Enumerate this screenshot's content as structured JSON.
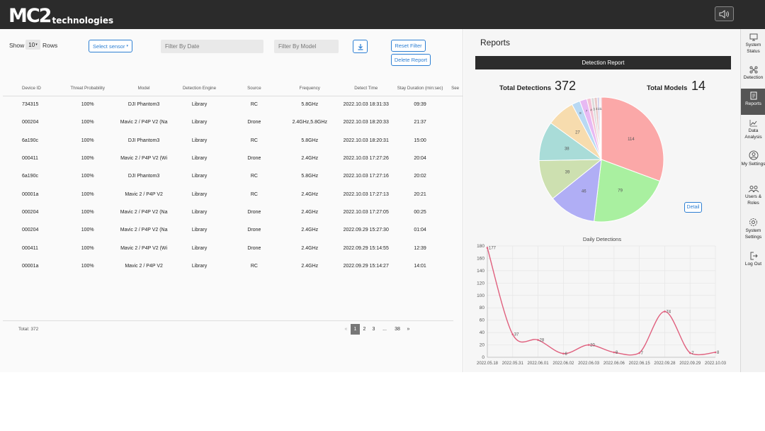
{
  "header": {
    "logo_mark": "MC2",
    "logo_text": "technologies"
  },
  "controls": {
    "show_label": "Show",
    "rows_value": "10",
    "rows_label": "Rows",
    "select_sensor": "Select sensor",
    "filter_date_placeholder": "Filter By Date",
    "filter_model_placeholder": "Filter By Model",
    "reset_filter": "Reset Filter",
    "delete_report": "Delete Report"
  },
  "table": {
    "columns": [
      "Device ID",
      "Threat Probability",
      "Model",
      "Detection Engine",
      "Source",
      "Frequency",
      "Detect Time",
      "Stay Duration (min:sec)",
      "See"
    ],
    "rows": [
      [
        "734315",
        "100%",
        "DJI Phantom3",
        "Library",
        "RC",
        "5.8GHz",
        "2022.10.03 18:31:33",
        "09:39"
      ],
      [
        "000204",
        "100%",
        "Mavic 2 / P4P V2 (Na",
        "Library",
        "Drone",
        "2.4GHz,5.8GHz",
        "2022.10.03 18:20:33",
        "21:37"
      ],
      [
        "6a190c",
        "100%",
        "DJI Phantom3",
        "Library",
        "RC",
        "5.8GHz",
        "2022.10.03 18:20:31",
        "15:00"
      ],
      [
        "000411",
        "100%",
        "Mavic 2 / P4P V2 (Wi",
        "Library",
        "Drone",
        "2.4GHz",
        "2022.10.03 17:27:26",
        "20:04"
      ],
      [
        "6a190c",
        "100%",
        "DJI Phantom3",
        "Library",
        "RC",
        "5.8GHz",
        "2022.10.03 17:27:16",
        "20:02"
      ],
      [
        "00001a",
        "100%",
        "Mavic 2 / P4P V2",
        "Library",
        "RC",
        "2.4GHz",
        "2022.10.03 17:27:13",
        "20:21"
      ],
      [
        "000204",
        "100%",
        "Mavic 2 / P4P V2 (Na",
        "Library",
        "Drone",
        "2.4GHz",
        "2022.10.03 17:27:05",
        "00:25"
      ],
      [
        "000204",
        "100%",
        "Mavic 2 / P4P V2 (Na",
        "Library",
        "Drone",
        "2.4GHz",
        "2022.09.29 15:27:30",
        "01:04"
      ],
      [
        "000411",
        "100%",
        "Mavic 2 / P4P V2 (Wi",
        "Library",
        "Drone",
        "2.4GHz",
        "2022.09.29 15:14:55",
        "12:39"
      ],
      [
        "00001a",
        "100%",
        "Mavic 2 / P4P V2",
        "Library",
        "RC",
        "2.4GHz",
        "2022.09.29 15:14:27",
        "14:01"
      ]
    ],
    "total_text": "Total: 372"
  },
  "pagination": {
    "prev": "«",
    "pages": [
      "1",
      "2",
      "3",
      "...",
      "38"
    ],
    "next": "»",
    "active": "1"
  },
  "reports": {
    "title": "Reports",
    "detection_report": "Detection Report",
    "total_detections_label": "Total Detections",
    "total_detections_value": "372",
    "total_models_label": "Total Models",
    "total_models_value": "14",
    "detail_button": "Detail",
    "daily_title": "Daily Detections"
  },
  "sidebar": {
    "items": [
      {
        "label": "System Status",
        "icon": "monitor-icon"
      },
      {
        "label": "Detection",
        "icon": "drone-icon"
      },
      {
        "label": "Reports",
        "icon": "report-icon"
      },
      {
        "label": "Data Analysis",
        "icon": "analysis-icon"
      },
      {
        "label": "My Settings",
        "icon": "user-icon"
      },
      {
        "label": "Users & Roles",
        "icon": "users-icon"
      },
      {
        "label": "System Settings",
        "icon": "gear-icon"
      },
      {
        "label": "Log Out",
        "icon": "logout-icon"
      }
    ],
    "active": "Reports"
  },
  "colors": {
    "accent": "#2d7fd3",
    "topbar": "#2b2b2b",
    "line": "#e0607e"
  },
  "chart_data": [
    {
      "type": "pie",
      "values": [
        114,
        79,
        46,
        39,
        38,
        27,
        8,
        7,
        4,
        3,
        3,
        2,
        1,
        1
      ],
      "labels": [
        "114",
        "79",
        "46",
        "39",
        "38",
        "27",
        "8",
        "7",
        "4",
        "3",
        "3",
        "2",
        "1",
        "1"
      ],
      "colors": [
        "#fba8a8",
        "#a9f0a0",
        "#b0aef5",
        "#cde0b0",
        "#a9dcd8",
        "#f7dcae",
        "#b9d9f3",
        "#e7b9f3",
        "#f3c2d4",
        "#dcdcdc",
        "#e9c9c9",
        "#c9c9e9",
        "#f0d0b0",
        "#d0b0d0"
      ]
    },
    {
      "type": "line",
      "title": "Daily Detections",
      "categories": [
        "2022.05.18",
        "2022.05.31",
        "2022.06.01",
        "2022.06.02",
        "2022.06.03",
        "2022.06.06",
        "2022.06.15",
        "2022.09.28",
        "2022.09.29",
        "2022.10.03"
      ],
      "values": [
        177,
        37,
        28,
        6,
        20,
        8,
        7,
        74,
        7,
        8
      ],
      "y_ticks": [
        "0",
        "20",
        "40",
        "60",
        "80",
        "100",
        "120",
        "140",
        "160",
        "180"
      ],
      "ylim": [
        0,
        180
      ],
      "grid": true
    }
  ]
}
